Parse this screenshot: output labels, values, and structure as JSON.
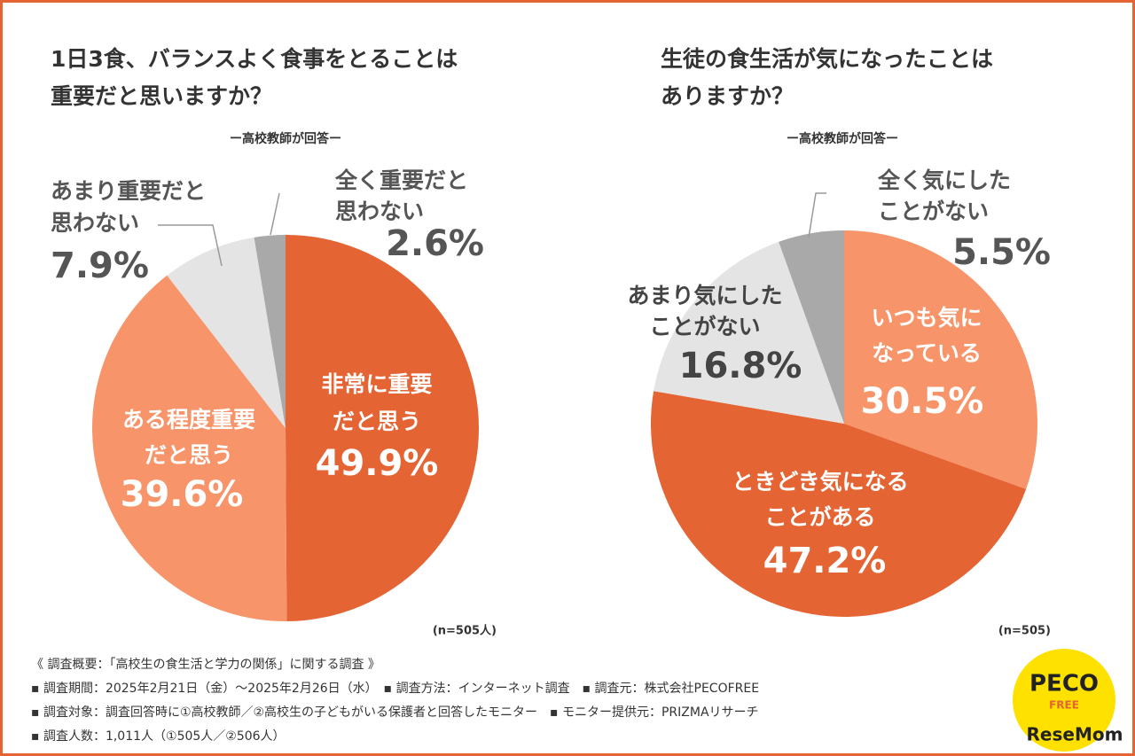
{
  "chart_data": [
    {
      "type": "pie",
      "title": [
        "1日3食、バランスよく食事をとることは",
        "重要だと思いますか？"
      ],
      "subtitle": "ー高校教師が回答ー",
      "note": "(n=505人)",
      "categories": [
        [
          "非常に重要",
          "だと思う"
        ],
        [
          "ある程度重要",
          "だと思う"
        ],
        [
          "あまり重要だと",
          "思わない"
        ],
        [
          "全く重要だと",
          "思わない"
        ]
      ],
      "values": [
        49.9,
        39.6,
        7.9,
        2.6
      ],
      "value_labels": [
        "49.9%",
        "39.6%",
        "7.9%",
        "2.6%"
      ],
      "colors": [
        "#e46433",
        "#f8946a",
        "#e4e4e4",
        "#a9a9a9"
      ]
    },
    {
      "type": "pie",
      "title": [
        "生徒の食生活が気になったことは",
        "ありますか？"
      ],
      "subtitle": "ー高校教師が回答ー",
      "note": "(n=505)",
      "categories": [
        [
          "いつも気に",
          "なっている"
        ],
        [
          "ときどき気になる",
          "ことがある"
        ],
        [
          "あまり気にした",
          "ことがない"
        ],
        [
          "全く気にした",
          "ことがない"
        ]
      ],
      "values": [
        30.5,
        47.2,
        16.8,
        5.5
      ],
      "value_labels": [
        "30.5%",
        "47.2%",
        "16.8%",
        "5.5%"
      ],
      "colors": [
        "#f8946a",
        "#e46433",
        "#e4e4e4",
        "#a9a9a9"
      ]
    }
  ],
  "footer": [
    "《 調査概要：「高校生の食生活と学力の関係」に関する調査 》",
    "▪ 調査期間：2025年2月21日（金）〜2025年2月26日（水）　▪ 調査方法：インターネット調査　▪ 調査元：株式会社PECOFREE",
    "▪ 調査対象：調査回答時に①高校教師／②高校生の子どもがいる保護者と回答したモニター　▪ モニター提供元：PRIZMAリサーチ",
    "▪ 調査人数：1,011人（①505人／②506人）"
  ],
  "logo": {
    "brand": [
      "PECO",
      "FREE"
    ],
    "site": "ReseMom"
  }
}
